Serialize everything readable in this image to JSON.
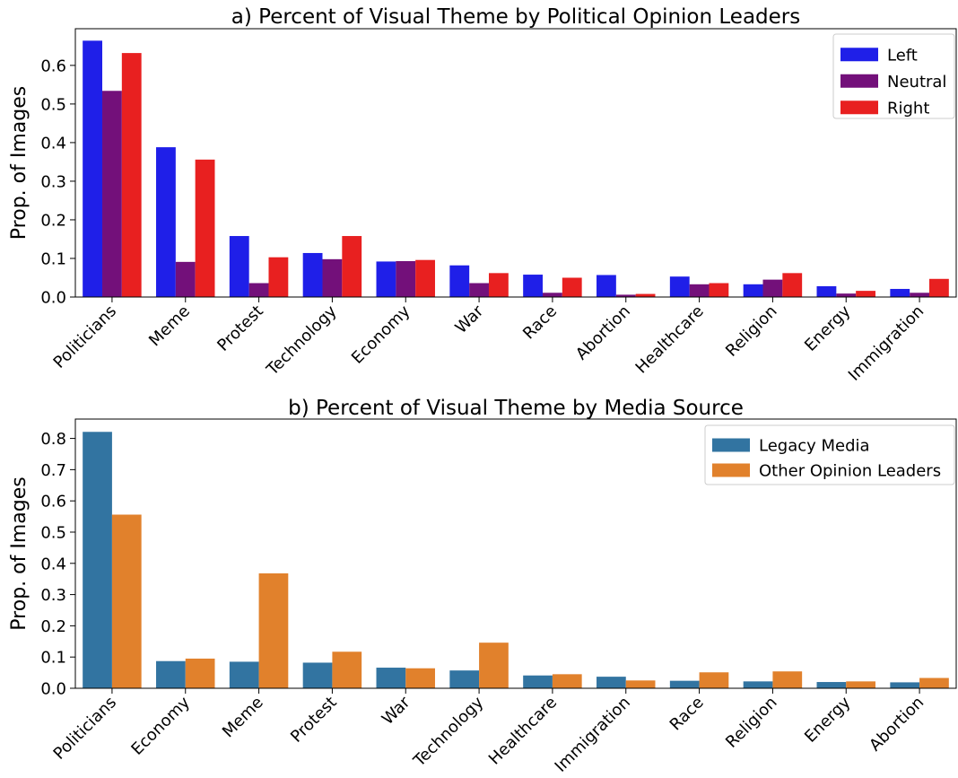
{
  "chart_data": [
    {
      "type": "bar",
      "title": "a) Percent of Visual Theme by Political Opinion Leaders",
      "xlabel": "",
      "ylabel": "Prop. of Images",
      "ylim": [
        0,
        0.695
      ],
      "yticks": [
        "0.0",
        "0.1",
        "0.2",
        "0.3",
        "0.4",
        "0.5",
        "0.6"
      ],
      "grid": false,
      "legend": "top-right",
      "categories": [
        "Politicians",
        "Meme",
        "Protest",
        "Technology",
        "Economy",
        "War",
        "Race",
        "Abortion",
        "Healthcare",
        "Religion",
        "Energy",
        "Immigration"
      ],
      "series": [
        {
          "name": "Left",
          "color": "#1f1fe8",
          "values": [
            0.664,
            0.388,
            0.158,
            0.114,
            0.092,
            0.082,
            0.058,
            0.057,
            0.053,
            0.033,
            0.028,
            0.021
          ]
        },
        {
          "name": "Neutral",
          "color": "#73107a",
          "values": [
            0.534,
            0.091,
            0.036,
            0.098,
            0.093,
            0.036,
            0.011,
            0.006,
            0.033,
            0.045,
            0.009,
            0.011
          ]
        },
        {
          "name": "Right",
          "color": "#e82020",
          "values": [
            0.632,
            0.356,
            0.103,
            0.158,
            0.096,
            0.062,
            0.05,
            0.008,
            0.036,
            0.062,
            0.016,
            0.047
          ]
        }
      ]
    },
    {
      "type": "bar",
      "title": "b) Percent of Visual Theme by Media Source",
      "xlabel": "",
      "ylabel": "Prop. of Images",
      "ylim": [
        0,
        0.862
      ],
      "yticks": [
        "0.0",
        "0.1",
        "0.2",
        "0.3",
        "0.4",
        "0.5",
        "0.6",
        "0.7",
        "0.8"
      ],
      "grid": false,
      "legend": "top-right",
      "categories": [
        "Politicians",
        "Economy",
        "Meme",
        "Protest",
        "War",
        "Technology",
        "Healthcare",
        "Immigration",
        "Race",
        "Religion",
        "Energy",
        "Abortion"
      ],
      "series": [
        {
          "name": "Legacy Media",
          "color": "#3274a1",
          "values": [
            0.821,
            0.087,
            0.085,
            0.082,
            0.066,
            0.057,
            0.041,
            0.037,
            0.024,
            0.022,
            0.02,
            0.019
          ]
        },
        {
          "name": "Other Opinion Leaders",
          "color": "#e1812c",
          "values": [
            0.556,
            0.095,
            0.368,
            0.117,
            0.064,
            0.146,
            0.045,
            0.025,
            0.051,
            0.054,
            0.022,
            0.033
          ]
        }
      ]
    }
  ]
}
